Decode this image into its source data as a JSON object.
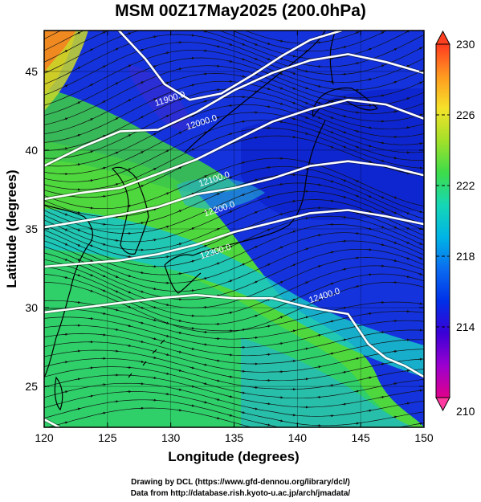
{
  "title": "MSM 00Z17May2025 (200.0hPa)",
  "xlabel": "Longitude (degrees)",
  "ylabel": "Latitude  (degrees)",
  "x_ticks": [
    "120",
    "125",
    "130",
    "135",
    "140",
    "145",
    "150"
  ],
  "y_ticks": [
    "25",
    "30",
    "35",
    "40",
    "45"
  ],
  "colorbar_ticks": [
    "230",
    "226",
    "222",
    "218",
    "214",
    "210"
  ],
  "contour_labels": [
    "11900.0",
    "12000.0",
    "12100.0",
    "12200.0",
    "12300.0",
    "12400.0"
  ],
  "credit_line1": "Drawing by DCL (https://www.gfd-dennou.org/library/dcl/)",
  "credit_line2": "Data from http://database.rish.kyoto-u.ac.jp/arch/jmadata/",
  "colors": {
    "colorbar_stops": [
      "#e0008a",
      "#9b00d0",
      "#3a00d6",
      "#0030e8",
      "#0a6cf0",
      "#00b4e6",
      "#16d7b4",
      "#3ddc4a",
      "#a3e02a",
      "#f5e22a",
      "#ff9a20",
      "#ff3a20"
    ]
  },
  "chart_data": {
    "type": "heatmap",
    "title": "MSM 00Z17May2025 (200.0hPa)",
    "xlabel": "Longitude (degrees)",
    "ylabel": "Latitude  (degrees)",
    "xlim": [
      120,
      150
    ],
    "ylim": [
      22.4,
      47.6
    ],
    "x_ticks": [
      120,
      125,
      130,
      135,
      140,
      145,
      150
    ],
    "y_ticks": [
      25,
      30,
      35,
      40,
      45
    ],
    "colorbar": {
      "min": 210,
      "max": 230,
      "ticks": [
        210,
        214,
        218,
        222,
        226,
        230
      ]
    },
    "contours": [
      {
        "label": "11900.0",
        "points": [
          [
            125.9,
            47.6
          ],
          [
            128.0,
            45.8
          ],
          [
            129.5,
            44.2
          ],
          [
            131.5,
            43.2
          ],
          [
            134.0,
            43.6
          ],
          [
            136.5,
            44.8
          ],
          [
            138.8,
            46.0
          ],
          [
            141.0,
            47.0
          ],
          [
            143.5,
            47.6
          ]
        ]
      },
      {
        "label": "12000.0",
        "points": [
          [
            120.0,
            39.0
          ],
          [
            123.0,
            40.2
          ],
          [
            126.0,
            41.2
          ],
          [
            129.0,
            41.3
          ],
          [
            132.0,
            42.4
          ],
          [
            135.0,
            43.8
          ],
          [
            138.0,
            44.9
          ],
          [
            141.0,
            45.7
          ],
          [
            144.0,
            46.1
          ],
          [
            147.0,
            45.6
          ],
          [
            150.0,
            44.9
          ]
        ]
      },
      {
        "label": "12100.0",
        "points": [
          [
            120.0,
            36.9
          ],
          [
            123.0,
            37.3
          ],
          [
            126.0,
            37.6
          ],
          [
            129.0,
            38.5
          ],
          [
            132.0,
            39.4
          ],
          [
            135.0,
            40.6
          ],
          [
            138.0,
            41.8
          ],
          [
            141.0,
            42.6
          ],
          [
            144.0,
            43.2
          ],
          [
            147.0,
            42.9
          ],
          [
            150.0,
            42.0
          ]
        ]
      },
      {
        "label": "12200.0",
        "points": [
          [
            120.0,
            35.1
          ],
          [
            123.0,
            35.5
          ],
          [
            126.0,
            35.9
          ],
          [
            129.0,
            36.4
          ],
          [
            132.0,
            37.2
          ],
          [
            135.0,
            37.6
          ],
          [
            138.0,
            38.2
          ],
          [
            141.0,
            39.0
          ],
          [
            144.0,
            39.3
          ],
          [
            147.0,
            39.0
          ],
          [
            150.0,
            38.4
          ]
        ]
      },
      {
        "label": "12300.0",
        "points": [
          [
            120.0,
            32.6
          ],
          [
            123.0,
            32.8
          ],
          [
            126.0,
            33.0
          ],
          [
            129.0,
            33.4
          ],
          [
            132.0,
            34.0
          ],
          [
            135.0,
            34.8
          ],
          [
            138.0,
            35.4
          ],
          [
            141.0,
            36.0
          ],
          [
            144.0,
            36.2
          ],
          [
            147.0,
            35.8
          ],
          [
            150.0,
            35.3
          ]
        ]
      },
      {
        "label": "12400.0",
        "points": [
          [
            120.0,
            29.7
          ],
          [
            123.0,
            30.0
          ],
          [
            126.0,
            30.3
          ],
          [
            129.0,
            30.6
          ],
          [
            132.0,
            30.8
          ],
          [
            135.0,
            30.6
          ],
          [
            138.0,
            30.6
          ],
          [
            141.0,
            30.0
          ],
          [
            144.0,
            29.6
          ],
          [
            145.6,
            27.7
          ],
          [
            147.0,
            26.8
          ],
          [
            148.5,
            26.3
          ],
          [
            150.0,
            25.6
          ]
        ]
      },
      {
        "label": "",
        "points": [
          [
            120.0,
            22.9
          ],
          [
            121.2,
            22.4
          ]
        ]
      }
    ],
    "contour_label_positions": [
      {
        "label": "11900.0",
        "lon": 130.0,
        "lat": 43.1
      },
      {
        "label": "12000.0",
        "lon": 132.5,
        "lat": 41.6
      },
      {
        "label": "12100.0",
        "lon": 133.5,
        "lat": 38.0
      },
      {
        "label": "12200.0",
        "lon": 133.9,
        "lat": 36.1
      },
      {
        "label": "12300.0",
        "lon": 133.6,
        "lat": 33.4
      },
      {
        "label": "12400.0",
        "lon": 142.2,
        "lat": 30.6
      }
    ],
    "flow": "streamlines, predominantly west to east"
  }
}
